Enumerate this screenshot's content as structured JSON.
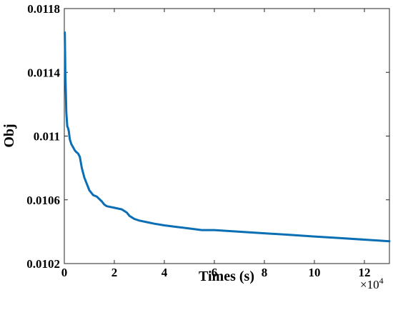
{
  "chart_data": {
    "type": "line",
    "title": "",
    "xlabel": "Times (s)",
    "ylabel": "Obj",
    "x_multiplier_base": "×10",
    "x_multiplier_exp": "4",
    "xlim": [
      0,
      13
    ],
    "ylim": [
      0.0102,
      0.0118
    ],
    "x_ticks": [
      0,
      2,
      4,
      6,
      8,
      10,
      12
    ],
    "x_tick_labels": [
      "0",
      "2",
      "4",
      "6",
      "8",
      "10",
      "12"
    ],
    "y_ticks": [
      0.0102,
      0.0106,
      0.011,
      0.0114,
      0.0118
    ],
    "y_tick_labels": [
      "0.0102",
      "0.0106",
      "0.011",
      "0.0114",
      "0.0118"
    ],
    "grid": false,
    "line_color": "#0a6eb4",
    "series": [
      {
        "x": [
          0.02,
          0.04,
          0.06,
          0.08,
          0.1,
          0.12,
          0.15,
          0.18,
          0.22,
          0.28,
          0.35,
          0.42,
          0.48,
          0.55,
          0.62,
          0.7,
          0.8,
          0.9,
          0.95,
          1.0,
          1.05,
          1.15,
          1.3,
          1.5,
          1.6,
          1.7,
          2.0,
          2.3,
          2.5,
          2.6,
          2.7,
          2.8,
          3.0,
          3.3,
          3.6,
          4.0,
          4.5,
          5.0,
          5.5,
          6.0,
          7.0,
          8.0,
          9.0,
          10.0,
          11.0,
          12.0,
          13.0
        ],
        "y": [
          0.01165,
          0.0114,
          0.01128,
          0.01115,
          0.0111,
          0.01106,
          0.01105,
          0.01103,
          0.01098,
          0.01095,
          0.01093,
          0.01091,
          0.0109,
          0.01089,
          0.01087,
          0.0108,
          0.01074,
          0.0107,
          0.01068,
          0.01066,
          0.01065,
          0.01063,
          0.01062,
          0.01059,
          0.01057,
          0.01056,
          0.01055,
          0.01054,
          0.01052,
          0.0105,
          0.01049,
          0.01048,
          0.01047,
          0.01046,
          0.01045,
          0.01044,
          0.01043,
          0.01042,
          0.01041,
          0.01041,
          0.0104,
          0.01039,
          0.01038,
          0.01037,
          0.01036,
          0.01035,
          0.01034
        ]
      }
    ]
  }
}
